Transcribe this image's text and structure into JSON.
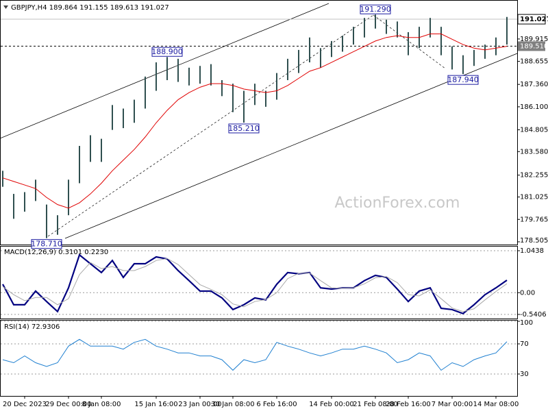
{
  "chart_data": [
    {
      "type": "range_bar",
      "title": "GBPJPY,H4  189.864 191.155 189.613 191.027",
      "watermark": "ActionForex.com",
      "categories": [
        null,
        null,
        "20 Dec 2023",
        null,
        null,
        null,
        "29 Dec 00:00",
        null,
        null,
        "8 Jan 08:00",
        null,
        null,
        null,
        null,
        "15 Jan 16:00",
        null,
        null,
        null,
        "23 Jan 00:00",
        null,
        null,
        "30 Jan 08:00",
        null,
        null,
        null,
        "6 Feb 16:00",
        null,
        null,
        null,
        null,
        "14 Feb 00:00",
        null,
        null,
        null,
        "21 Feb 08:00",
        null,
        null,
        "28 Feb 16:00",
        null,
        null,
        null,
        "7 Mar 00:00",
        null,
        null,
        null,
        "14 Mar 08:00",
        null
      ],
      "high": [
        182.5,
        181.2,
        181.3,
        182.0,
        180.6,
        180.0,
        182.0,
        183.9,
        184.5,
        184.3,
        186.2,
        186.0,
        186.5,
        187.8,
        188.6,
        188.9,
        188.8,
        188.3,
        188.4,
        188.5,
        187.6,
        187.4,
        187.0,
        187.4,
        187.0,
        188.0,
        188.8,
        189.3,
        190.0,
        189.4,
        189.8,
        190.1,
        190.6,
        191.1,
        191.29,
        191.0,
        190.9,
        190.3,
        190.6,
        191.1,
        190.6,
        189.5,
        189.0,
        189.3,
        189.6,
        190.0,
        191.155
      ],
      "low": [
        181.6,
        179.8,
        180.2,
        180.8,
        178.71,
        178.9,
        180.0,
        181.8,
        183.0,
        183.0,
        184.8,
        184.9,
        185.2,
        186.0,
        187.0,
        187.6,
        187.5,
        187.3,
        187.4,
        187.3,
        186.7,
        185.8,
        185.21,
        186.2,
        186.1,
        186.5,
        187.6,
        188.0,
        188.6,
        188.3,
        188.9,
        189.2,
        189.6,
        190.0,
        190.5,
        190.2,
        190.0,
        189.0,
        189.4,
        190.0,
        189.0,
        188.2,
        187.94,
        188.4,
        188.8,
        189.0,
        189.6
      ],
      "color": "#2f4f4f",
      "ma_line": {
        "color": "#e00000",
        "values": [
          182.1,
          181.9,
          181.7,
          181.5,
          181.0,
          180.6,
          180.4,
          180.7,
          181.2,
          181.8,
          182.5,
          183.1,
          183.7,
          184.4,
          185.2,
          185.9,
          186.5,
          186.9,
          187.2,
          187.4,
          187.4,
          187.3,
          187.1,
          187.0,
          186.9,
          187.0,
          187.3,
          187.7,
          188.1,
          188.3,
          188.6,
          188.9,
          189.2,
          189.5,
          189.8,
          190.0,
          190.1,
          190.0,
          190.0,
          190.2,
          190.2,
          189.9,
          189.6,
          189.4,
          189.3,
          189.4,
          189.5
        ]
      },
      "annotations": [
        {
          "value": 188.9,
          "label": "188.900"
        },
        {
          "value": 185.21,
          "label": "185.210"
        },
        {
          "value": 178.71,
          "label": "178.710"
        },
        {
          "value": 191.29,
          "label": "191.290"
        },
        {
          "value": 187.94,
          "label": "187.940"
        }
      ],
      "bid": 191.027,
      "level": 189.51,
      "ylim": [
        178.35,
        191.8
      ],
      "yticks": [
        191.027,
        189.915,
        {
          "value": 189.51,
          "label": "189.510"
        },
        188.655,
        {
          "value": 187.36,
          "label": "187.360"
        },
        {
          "value": 186.1,
          "label": "186.100"
        },
        184.805,
        {
          "value": 183.58,
          "label": "183.580"
        },
        182.255,
        181.025,
        179.765,
        178.505
      ],
      "grid": false
    },
    {
      "type": "macd",
      "title": "MACD(12,26,9) 0.3101 0.2230",
      "series": [
        {
          "color": "#000080",
          "width": 2.2,
          "values": [
            0.21,
            -0.3,
            -0.3,
            0.04,
            -0.22,
            -0.47,
            0.12,
            0.94,
            0.72,
            0.5,
            0.8,
            0.38,
            0.72,
            0.72,
            0.89,
            0.84,
            0.55,
            0.3,
            0.04,
            0.04,
            -0.13,
            -0.42,
            -0.3,
            -0.13,
            -0.18,
            0.21,
            0.5,
            0.47,
            0.5,
            0.12,
            0.09,
            0.12,
            0.12,
            0.3,
            0.43,
            0.38,
            0.09,
            -0.22,
            0.04,
            0.12,
            -0.39,
            -0.42,
            -0.52,
            -0.3,
            -0.05,
            0.12,
            0.3101
          ]
        },
        {
          "color": "#a8a8a8",
          "width": 1,
          "values": [
            0.15,
            -0.05,
            -0.2,
            -0.12,
            -0.12,
            -0.3,
            -0.15,
            0.45,
            0.75,
            0.6,
            0.65,
            0.55,
            0.55,
            0.65,
            0.8,
            0.85,
            0.7,
            0.45,
            0.2,
            0.08,
            -0.05,
            -0.28,
            -0.35,
            -0.22,
            -0.17,
            0.0,
            0.35,
            0.48,
            0.49,
            0.3,
            0.12,
            0.11,
            0.12,
            0.22,
            0.37,
            0.4,
            0.25,
            -0.05,
            -0.08,
            0.07,
            -0.15,
            -0.38,
            -0.47,
            -0.4,
            -0.18,
            0.03,
            0.223
          ]
        }
      ],
      "ylim": [
        -0.643,
        1.146
      ],
      "yticks": [
        1.0438,
        {
          "value": 0,
          "label": "0.00"
        },
        -0.5406
      ],
      "grid": true
    },
    {
      "type": "rsi",
      "title": "RSI(14) 72.9306",
      "series": [
        {
          "color": "#1e7fd0",
          "width": 1,
          "values": [
            49,
            45,
            54,
            45,
            40,
            45,
            67,
            76,
            67,
            67,
            67,
            63,
            72,
            76,
            67,
            63,
            58,
            58,
            54,
            54,
            49,
            35,
            49,
            45,
            49,
            72,
            67,
            63,
            58,
            54,
            58,
            63,
            63,
            67,
            63,
            58,
            45,
            49,
            58,
            54,
            35,
            45,
            40,
            49,
            54,
            58,
            72.9306
          ]
        }
      ],
      "ylim": [
        0,
        100
      ],
      "yticks": [
        100,
        70,
        30
      ],
      "grid": true
    }
  ]
}
